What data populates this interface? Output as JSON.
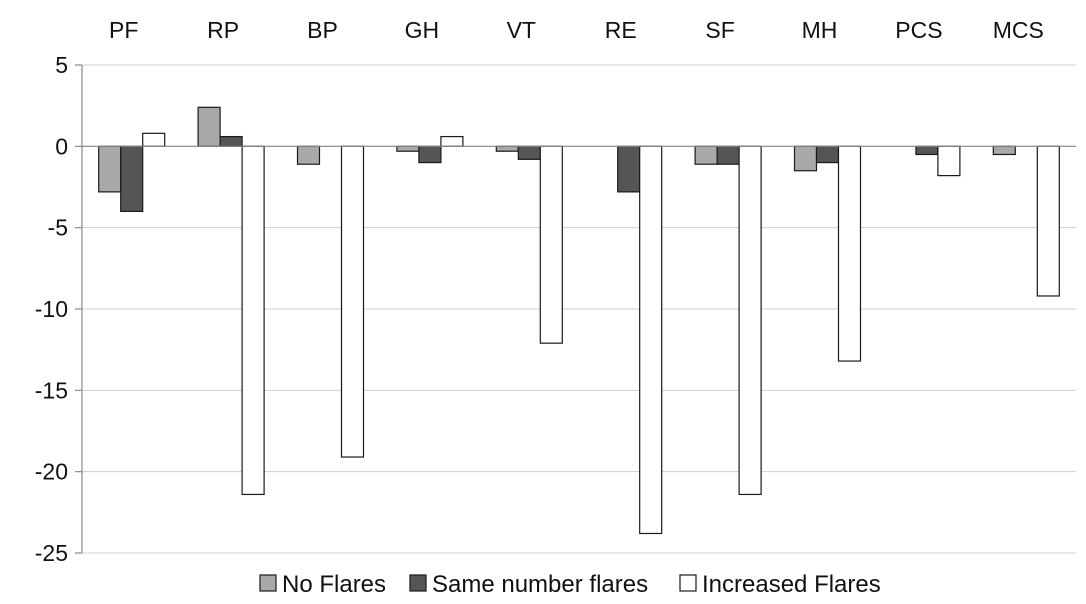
{
  "chart_data": {
    "type": "bar",
    "title": "",
    "xlabel": "",
    "ylabel": "",
    "categories": [
      "PF",
      "RP",
      "BP",
      "GH",
      "VT",
      "RE",
      "SF",
      "MH",
      "PCS",
      "MCS"
    ],
    "series": [
      {
        "name": "No Flares",
        "color": "#a9a9a9",
        "values": [
          -2.8,
          2.4,
          -1.1,
          -0.3,
          -0.3,
          0,
          -1.1,
          -1.5,
          0,
          -0.5
        ]
      },
      {
        "name": "Same number flares",
        "color": "#555555",
        "values": [
          -4.0,
          0.6,
          0,
          -1.0,
          -0.8,
          -2.8,
          -1.1,
          -1.0,
          -0.5,
          0
        ]
      },
      {
        "name": "Increased Flares",
        "color": "#ffffff",
        "values": [
          0.8,
          -21.4,
          -19.1,
          0.6,
          -12.1,
          -23.8,
          -21.4,
          -13.2,
          -1.8,
          -9.2
        ]
      }
    ],
    "ylim": [
      -25,
      5
    ],
    "yticks": [
      5,
      0,
      -5,
      -10,
      -15,
      -20,
      -25
    ],
    "category_labels_position": "top",
    "grid": true,
    "legend_position": "bottom-center"
  }
}
